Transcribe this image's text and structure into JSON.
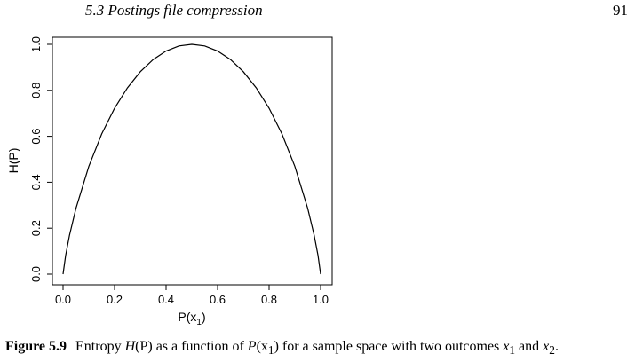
{
  "header": {
    "running_head": "5.3 Postings file compression",
    "page_number": "91"
  },
  "chart_data": {
    "type": "line",
    "xlabel": "P(x1)",
    "ylabel": "H(P)",
    "xlim": [
      0,
      1
    ],
    "ylim": [
      0,
      1
    ],
    "xticks": [
      "0.0",
      "0.2",
      "0.4",
      "0.6",
      "0.8",
      "1.0"
    ],
    "yticks": [
      "0.0",
      "0.2",
      "0.4",
      "0.6",
      "0.8",
      "1.0"
    ],
    "grid": false,
    "series": [
      {
        "x": [
          0.0,
          0.01,
          0.025,
          0.05,
          0.1,
          0.15,
          0.2,
          0.25,
          0.3,
          0.35,
          0.4,
          0.45,
          0.5,
          0.55,
          0.6,
          0.65,
          0.7,
          0.75,
          0.8,
          0.85,
          0.9,
          0.95,
          0.975,
          0.99,
          1.0
        ],
        "values": [
          0.0,
          0.081,
          0.169,
          0.286,
          0.469,
          0.61,
          0.722,
          0.811,
          0.881,
          0.934,
          0.971,
          0.993,
          1.0,
          0.993,
          0.971,
          0.934,
          0.881,
          0.811,
          0.722,
          0.61,
          0.469,
          0.286,
          0.169,
          0.081,
          0.0
        ]
      }
    ],
    "color": "#000000"
  },
  "caption": {
    "label": "Figure 5.9",
    "text_1": "Entropy ",
    "h_of_p": "H",
    "paren_p": "(P)",
    "text_2": " as a function of ",
    "p_of_x1": "P",
    "paren_x1_open": "(x",
    "sub_1": "1",
    "paren_close": ")",
    "text_3": " for a sample space with two outcomes ",
    "x_a": "x",
    "sub_a": "1",
    "text_4": " and ",
    "x_b": "x",
    "sub_b": "2",
    "text_5": "."
  }
}
